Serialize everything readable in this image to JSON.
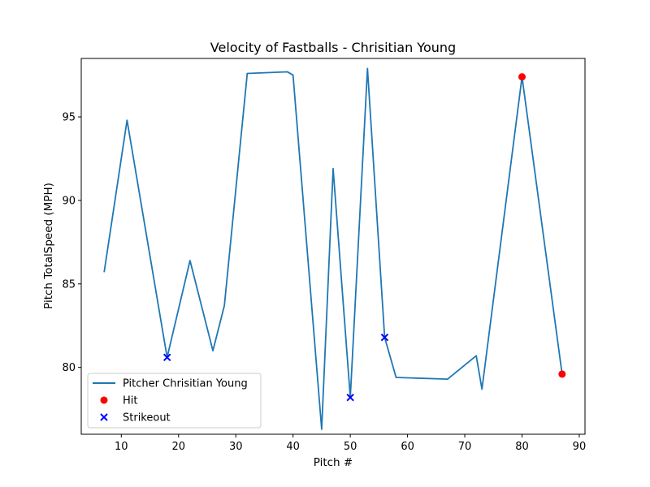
{
  "chart_data": {
    "type": "line",
    "title": "Velocity of Fastballs - Chrisitian Young",
    "xlabel": "Pitch #",
    "ylabel": "Pitch TotalSpeed (MPH)",
    "xlim": [
      3,
      91
    ],
    "ylim": [
      76,
      98.5
    ],
    "xticks": [
      10,
      20,
      30,
      40,
      50,
      60,
      70,
      80,
      90
    ],
    "yticks": [
      80,
      85,
      90,
      95
    ],
    "grid": false,
    "legend_position": "lower-left",
    "series": [
      {
        "name": "Pitcher Chrisitian Young",
        "kind": "line",
        "color": "#1f77b4",
        "x": [
          7,
          11,
          18,
          22,
          26,
          28,
          32,
          39,
          40,
          45,
          47,
          50,
          53,
          56,
          58,
          67,
          72,
          73,
          80,
          87
        ],
        "y": [
          85.7,
          94.8,
          80.6,
          86.4,
          81.0,
          83.7,
          97.6,
          97.7,
          97.5,
          76.3,
          91.9,
          78.2,
          97.9,
          81.8,
          79.4,
          79.3,
          80.7,
          78.7,
          97.4,
          79.6
        ]
      },
      {
        "name": "Hit",
        "kind": "scatter",
        "marker": "circle",
        "color": "#ff0000",
        "x": [
          80,
          87
        ],
        "y": [
          97.4,
          79.6
        ]
      },
      {
        "name": "Strikeout",
        "kind": "scatter",
        "marker": "x",
        "color": "#0000ff",
        "x": [
          18,
          50,
          56
        ],
        "y": [
          80.6,
          78.2,
          81.8
        ]
      }
    ]
  }
}
